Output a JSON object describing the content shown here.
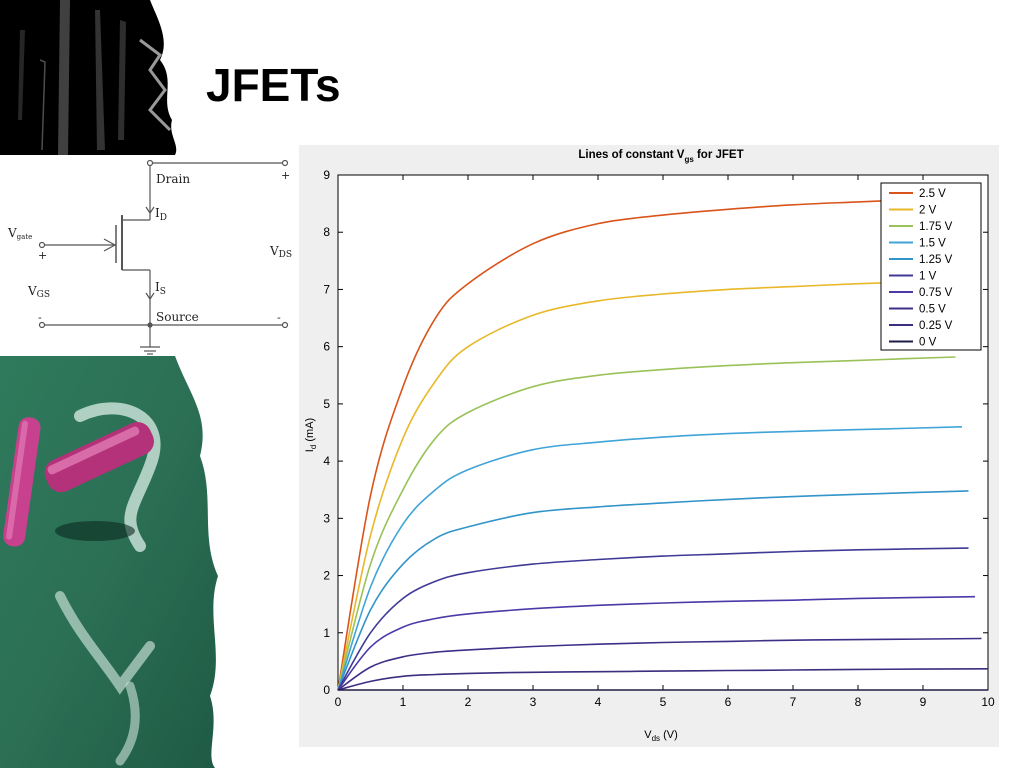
{
  "slide": {
    "title": "JFETs"
  },
  "circuit": {
    "drain_label": "Drain",
    "source_label": "Source",
    "id_main": "I",
    "id_sub": "D",
    "is_main": "I",
    "is_sub": "S",
    "vgate_main": "V",
    "vgate_sub": "gate",
    "vgs_main": "V",
    "vgs_sub": "GS",
    "vds_main": "V",
    "vds_sub": "DS",
    "plus": "+",
    "minus": "-"
  },
  "chart_data": {
    "type": "line",
    "title": "Lines of constant V",
    "title_sub": "gs",
    "title_suffix": " for JFET",
    "xlabel": "V",
    "xlabel_sub": "ds",
    "xlabel_suffix": " (V)",
    "ylabel": "I",
    "ylabel_sub": "d",
    "ylabel_suffix": " (mA)",
    "xlim": [
      0,
      10
    ],
    "ylim": [
      0,
      9
    ],
    "xticks": [
      "0",
      "1",
      "2",
      "3",
      "4",
      "5",
      "6",
      "7",
      "8",
      "9",
      "10"
    ],
    "yticks": [
      "0",
      "1",
      "2",
      "3",
      "4",
      "5",
      "6",
      "7",
      "8",
      "9"
    ],
    "legend_position": "top-right",
    "series": [
      {
        "name": "2.5 V",
        "color": "#d9541a",
        "x": [
          0,
          0.5,
          1,
          1.5,
          2,
          3,
          4,
          5,
          6,
          7,
          8,
          9.4
        ],
        "y": [
          0,
          3.4,
          5.3,
          6.5,
          7.1,
          7.8,
          8.15,
          8.3,
          8.4,
          8.48,
          8.53,
          8.6
        ]
      },
      {
        "name": "2 V",
        "color": "#e8b82a",
        "x": [
          0,
          0.5,
          1,
          1.5,
          2,
          3,
          4,
          5,
          6,
          7,
          8,
          9.4
        ],
        "y": [
          0,
          2.7,
          4.4,
          5.4,
          6.0,
          6.55,
          6.8,
          6.92,
          7.0,
          7.05,
          7.1,
          7.15
        ]
      },
      {
        "name": "1.75 V",
        "color": "#9ac258",
        "x": [
          0,
          0.5,
          1,
          1.5,
          2,
          3,
          4,
          5,
          6,
          7,
          8,
          9.5
        ],
        "y": [
          0,
          2.2,
          3.5,
          4.4,
          4.85,
          5.3,
          5.5,
          5.6,
          5.67,
          5.72,
          5.76,
          5.82
        ]
      },
      {
        "name": "1.5 V",
        "color": "#40a4d8",
        "x": [
          0,
          0.5,
          1,
          1.5,
          2,
          3,
          4,
          5,
          6,
          7,
          8,
          9.6
        ],
        "y": [
          0,
          1.8,
          2.9,
          3.5,
          3.85,
          4.2,
          4.33,
          4.42,
          4.48,
          4.52,
          4.55,
          4.6
        ]
      },
      {
        "name": "1.25 V",
        "color": "#3294c8",
        "x": [
          0,
          0.5,
          1,
          1.5,
          2,
          3,
          4,
          5,
          6,
          7,
          8,
          9.7
        ],
        "y": [
          0,
          1.4,
          2.2,
          2.65,
          2.85,
          3.1,
          3.2,
          3.27,
          3.33,
          3.38,
          3.42,
          3.48
        ]
      },
      {
        "name": "1 V",
        "color": "#3f3a96",
        "x": [
          0,
          0.5,
          1,
          1.5,
          2,
          3,
          4,
          5,
          6,
          7,
          8,
          9.7
        ],
        "y": [
          0,
          1.0,
          1.6,
          1.9,
          2.05,
          2.2,
          2.28,
          2.34,
          2.38,
          2.42,
          2.45,
          2.48
        ]
      },
      {
        "name": "0.75 V",
        "color": "#4a3aa8",
        "x": [
          0,
          0.5,
          1,
          1.5,
          2,
          3,
          4,
          5,
          6,
          7,
          8,
          9.8
        ],
        "y": [
          0,
          0.75,
          1.1,
          1.25,
          1.33,
          1.42,
          1.48,
          1.52,
          1.55,
          1.57,
          1.6,
          1.63
        ]
      },
      {
        "name": "0.5 V",
        "color": "#3d2f88",
        "x": [
          0,
          0.5,
          1,
          1.5,
          2,
          3,
          4,
          5,
          6,
          7,
          8,
          9.9
        ],
        "y": [
          0,
          0.4,
          0.58,
          0.66,
          0.7,
          0.76,
          0.8,
          0.83,
          0.85,
          0.87,
          0.88,
          0.9
        ]
      },
      {
        "name": "0.25 V",
        "color": "#3c2d80",
        "x": [
          0,
          0.5,
          1,
          1.5,
          2,
          3,
          4,
          5,
          6,
          7,
          8,
          10
        ],
        "y": [
          0,
          0.15,
          0.24,
          0.27,
          0.29,
          0.31,
          0.32,
          0.33,
          0.34,
          0.35,
          0.36,
          0.37
        ]
      },
      {
        "name": "0 V",
        "color": "#1e1e44",
        "x": [
          0,
          10
        ],
        "y": [
          0,
          0
        ]
      }
    ]
  }
}
